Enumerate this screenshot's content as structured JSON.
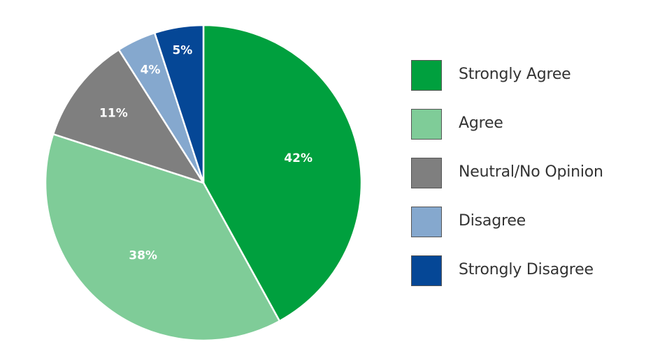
{
  "chart_data": {
    "type": "pie",
    "title": "",
    "categories": [
      "Strongly Agree",
      "Agree",
      "Neutral/No Opinion",
      "Disagree",
      "Strongly Disagree"
    ],
    "values": [
      42,
      38,
      11,
      4,
      5
    ],
    "labels": [
      "42%",
      "38%",
      "11%",
      "4%",
      "5%"
    ],
    "colors": [
      "#00a03e",
      "#7fcc98",
      "#7f7f7f",
      "#85a8ce",
      "#054796"
    ],
    "legend_position": "right",
    "start": "top, clockwise"
  },
  "legend": {
    "items": [
      {
        "label": "Strongly Agree",
        "color": "#00a03e"
      },
      {
        "label": "Agree",
        "color": "#7fcc98"
      },
      {
        "label": "Neutral/No Opinion",
        "color": "#7f7f7f"
      },
      {
        "label": "Disagree",
        "color": "#85a8ce"
      },
      {
        "label": "Strongly Disagree",
        "color": "#054796"
      }
    ]
  }
}
